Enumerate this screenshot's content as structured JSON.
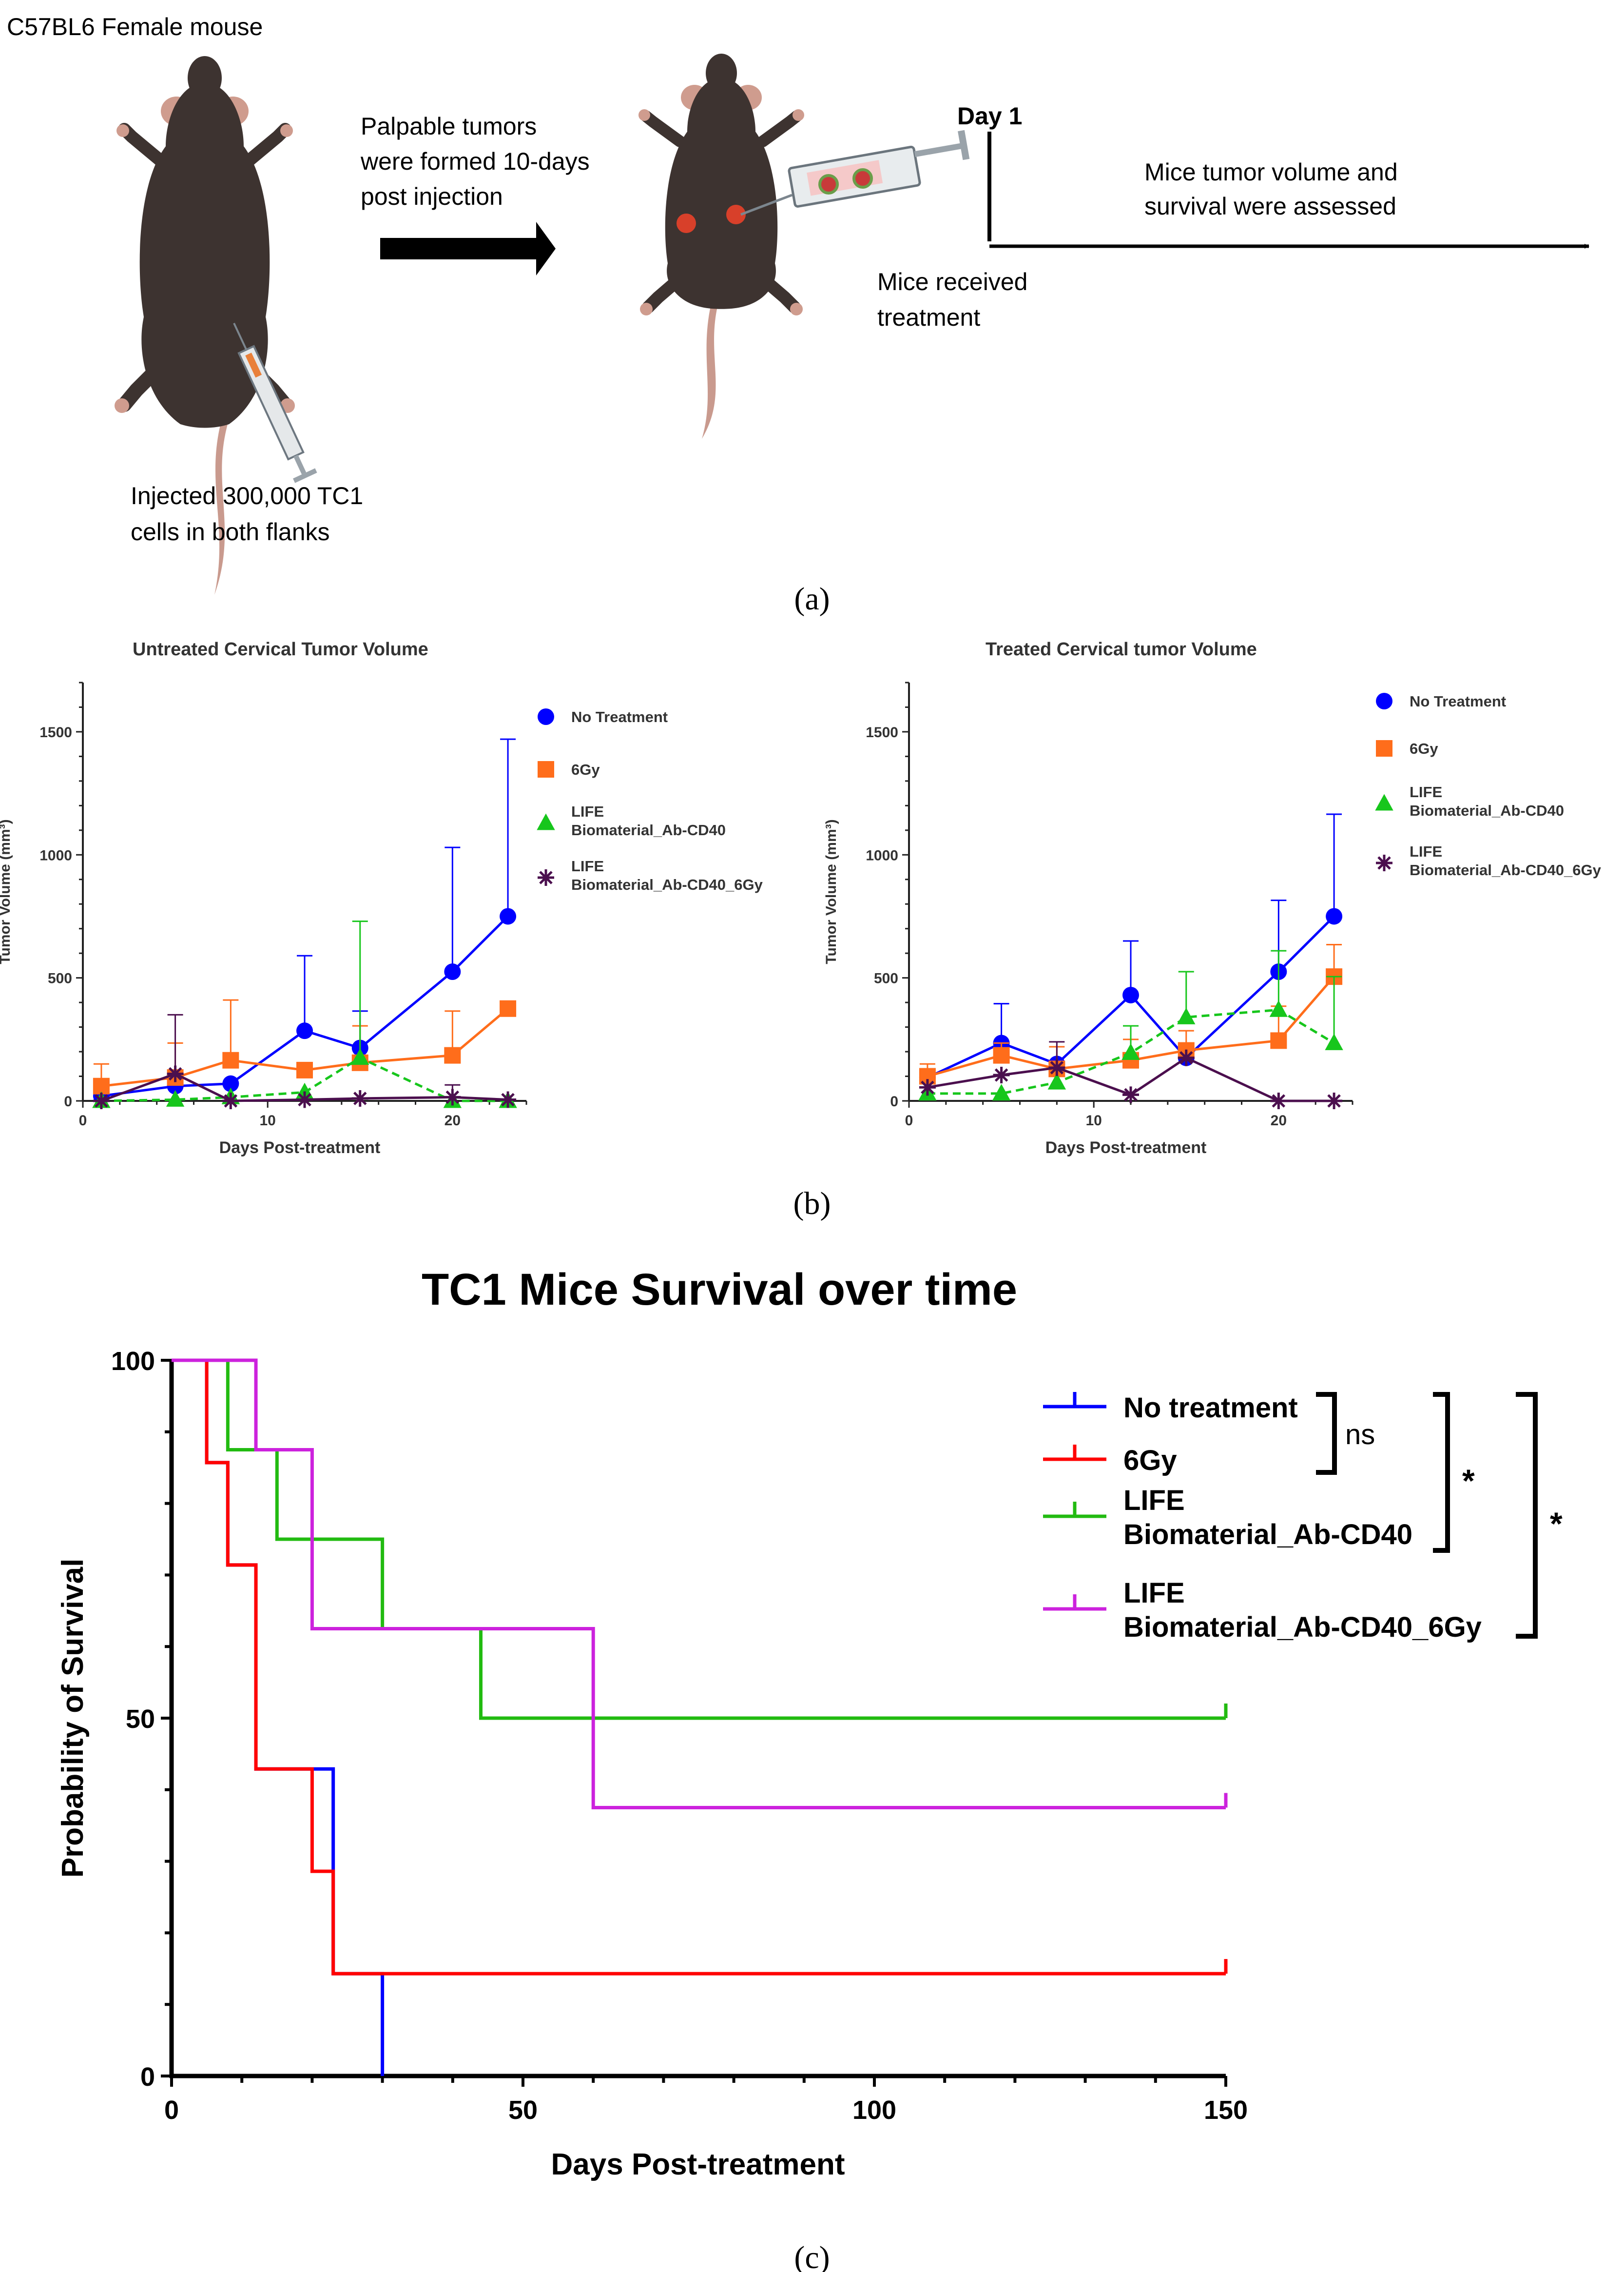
{
  "panel_a": {
    "top_label": "C57BL6 Female mouse",
    "arrow_caption_1": "Palpable tumors",
    "arrow_caption_2": "were formed 10-days",
    "arrow_caption_3": "post injection",
    "day_label": "Day 1",
    "assess_1": "Mice tumor volume and",
    "assess_2": "survival were assessed",
    "treat_1": "Mice received",
    "treat_2": "treatment",
    "inject_1": "Injected 300,000 TC1",
    "inject_2": "cells in both flanks",
    "caption": "(a)",
    "colors": {
      "mouse": "#3d3330",
      "tumor": "#d8402a",
      "tail": "#c99a8e"
    }
  },
  "panel_b_caption": "(b)",
  "panel_c_caption": "(c)",
  "chart_data": [
    {
      "type": "line",
      "title": "Untreated Cervical Tumor Volume",
      "xlabel": "Days Post-treatment",
      "ylabel": "Tumor Volume (mm³)",
      "xlim": [
        0,
        24
      ],
      "ylim": [
        0,
        1700
      ],
      "xticks": [
        0,
        10,
        20
      ],
      "yticks": [
        0,
        500,
        1000,
        1500
      ],
      "legend_position": "top-right",
      "series": [
        {
          "name": "No Treatment",
          "label_lines": [
            "No Treatment"
          ],
          "color": "#0000ff",
          "marker": "circle",
          "dashed": false,
          "x": [
            1,
            5,
            8,
            12,
            15,
            20,
            23
          ],
          "y": [
            20,
            60,
            70,
            285,
            215,
            525,
            750
          ],
          "err": [
            0,
            0,
            0,
            305,
            150,
            505,
            720
          ]
        },
        {
          "name": "6Gy",
          "label_lines": [
            "6Gy"
          ],
          "color": "#ff6d1b",
          "marker": "square",
          "dashed": false,
          "x": [
            1,
            5,
            8,
            12,
            15,
            20,
            23
          ],
          "y": [
            60,
            95,
            165,
            125,
            155,
            185,
            375
          ],
          "err": [
            90,
            140,
            245,
            0,
            150,
            180,
            0
          ]
        },
        {
          "name": "LIFE Biomaterial_Ab-CD40",
          "label_lines": [
            "LIFE",
            "Biomaterial_Ab-CD40"
          ],
          "color": "#17c61c",
          "marker": "triangle",
          "dashed": true,
          "x": [
            1,
            5,
            8,
            12,
            15,
            20,
            23
          ],
          "y": [
            0,
            5,
            15,
            35,
            175,
            0,
            0
          ],
          "err": [
            0,
            0,
            0,
            0,
            555,
            0,
            0
          ]
        },
        {
          "name": "LIFE Biomaterial_Ab-CD40_6Gy",
          "label_lines": [
            "LIFE",
            "Biomaterial_Ab-CD40_6Gy"
          ],
          "color": "#4b0f4e",
          "marker": "star",
          "dashed": false,
          "x": [
            1,
            5,
            8,
            12,
            15,
            20,
            23
          ],
          "y": [
            0,
            110,
            0,
            5,
            10,
            15,
            5
          ],
          "err": [
            0,
            240,
            0,
            0,
            0,
            50,
            0
          ]
        }
      ]
    },
    {
      "type": "line",
      "title": "Treated Cervical tumor Volume",
      "xlabel": "Days Post-treatment",
      "ylabel": "Tumor Volume (mm³)",
      "xlim": [
        0,
        24
      ],
      "ylim": [
        0,
        1700
      ],
      "xticks": [
        0,
        10,
        20
      ],
      "yticks": [
        0,
        500,
        1000,
        1500
      ],
      "legend_position": "top-right",
      "series": [
        {
          "name": "No Treatment",
          "label_lines": [
            "No Treatment"
          ],
          "color": "#0000ff",
          "marker": "circle",
          "dashed": false,
          "x": [
            1,
            5,
            8,
            12,
            15,
            20,
            23
          ],
          "y": [
            95,
            235,
            150,
            430,
            175,
            525,
            750
          ],
          "err": [
            0,
            160,
            0,
            220,
            0,
            290,
            415
          ]
        },
        {
          "name": "6Gy",
          "label_lines": [
            "6Gy"
          ],
          "color": "#ff6d1b",
          "marker": "square",
          "dashed": false,
          "x": [
            1,
            5,
            8,
            12,
            15,
            20,
            23
          ],
          "y": [
            100,
            185,
            130,
            165,
            205,
            245,
            505
          ],
          "err": [
            50,
            50,
            90,
            85,
            80,
            140,
            130
          ]
        },
        {
          "name": "LIFE Biomaterial_Ab-CD40",
          "label_lines": [
            "LIFE",
            "Biomaterial_Ab-CD40"
          ],
          "color": "#17c61c",
          "marker": "triangle",
          "dashed": true,
          "x": [
            1,
            5,
            8,
            12,
            15,
            20,
            23
          ],
          "y": [
            30,
            30,
            75,
            195,
            340,
            370,
            235
          ],
          "err": [
            0,
            0,
            0,
            110,
            185,
            240,
            270
          ]
        },
        {
          "name": "LIFE Biomaterial_Ab-CD40_6Gy",
          "label_lines": [
            "LIFE",
            "Biomaterial_Ab-CD40_6Gy"
          ],
          "color": "#4b0f4e",
          "marker": "star",
          "dashed": false,
          "x": [
            1,
            5,
            8,
            12,
            15,
            20,
            23
          ],
          "y": [
            55,
            105,
            135,
            25,
            175,
            0,
            0
          ],
          "err": [
            0,
            0,
            105,
            0,
            0,
            0,
            0
          ]
        }
      ]
    },
    {
      "type": "line",
      "subtype": "kaplan-meier",
      "title": "TC1 Mice Survival over time",
      "xlabel": "Days Post-treatment",
      "ylabel": "Probability of Survival",
      "xlim": [
        0,
        150
      ],
      "ylim": [
        0,
        100
      ],
      "xticks": [
        0,
        50,
        100,
        150
      ],
      "yticks": [
        0,
        50,
        100
      ],
      "legend_position": "top-right",
      "series": [
        {
          "name": "No treatment",
          "label_lines": [
            "No treatment"
          ],
          "color": "#0000ff",
          "x": [
            0,
            5,
            8,
            12,
            23,
            30
          ],
          "y": [
            100,
            85.7,
            71.4,
            42.9,
            14.3,
            0
          ]
        },
        {
          "name": "6Gy",
          "label_lines": [
            "6Gy"
          ],
          "color": "#ff0000",
          "x": [
            0,
            5,
            8,
            12,
            20,
            23,
            150
          ],
          "y": [
            100,
            85.7,
            71.4,
            42.9,
            28.6,
            14.3,
            14.3
          ]
        },
        {
          "name": "LIFE Biomaterial_Ab-CD40",
          "label_lines": [
            "LIFE",
            "Biomaterial_Ab-CD40"
          ],
          "color": "#22bb11",
          "x": [
            0,
            8,
            15,
            30,
            44,
            150
          ],
          "y": [
            100,
            87.5,
            75,
            62.5,
            50,
            50
          ]
        },
        {
          "name": "LIFE Biomaterial_Ab-CD40_6Gy",
          "label_lines": [
            "LIFE",
            "Biomaterial_Ab-CD40_6Gy"
          ],
          "color": "#cc22dd",
          "x": [
            0,
            12,
            20,
            60,
            150
          ],
          "y": [
            100,
            87.5,
            62.5,
            37.5,
            37.5
          ]
        }
      ],
      "annotations": [
        {
          "label": "ns",
          "groups": [
            "No treatment",
            "6Gy"
          ]
        },
        {
          "label": "*",
          "groups": [
            "No treatment",
            "LIFE Biomaterial_Ab-CD40"
          ]
        },
        {
          "label": "*",
          "groups": [
            "No treatment",
            "LIFE Biomaterial_Ab-CD40_6Gy"
          ]
        }
      ]
    }
  ]
}
